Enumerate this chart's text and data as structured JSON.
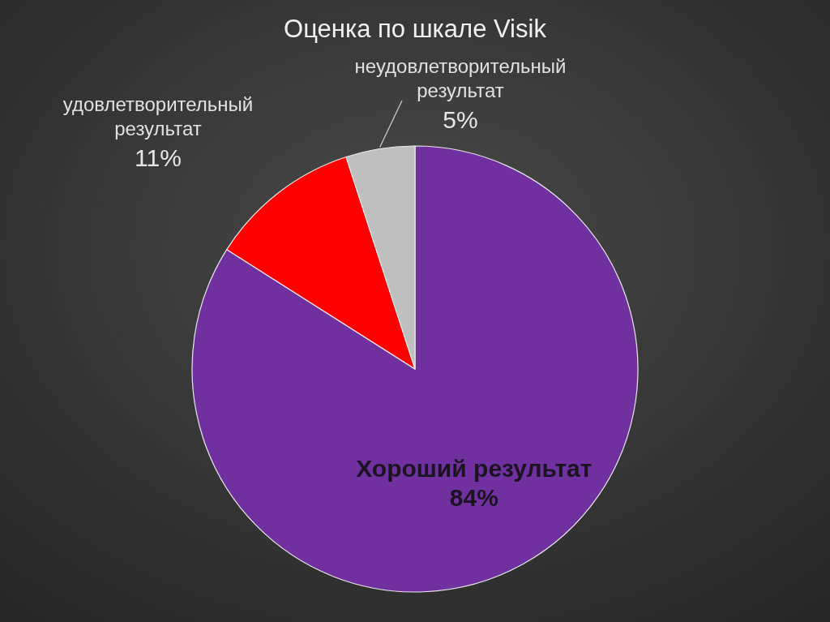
{
  "chart_data": {
    "type": "pie",
    "title": "Оценка по шкале Visik",
    "categories": [
      "Хороший результат",
      "удовлетворительный результат",
      "неудовлетворительный результат"
    ],
    "values": [
      84,
      11,
      5
    ],
    "colors": [
      "#7030a0",
      "#ff0000",
      "#bfbfbf"
    ],
    "value_labels": [
      "84%",
      "11%",
      "5%"
    ]
  }
}
